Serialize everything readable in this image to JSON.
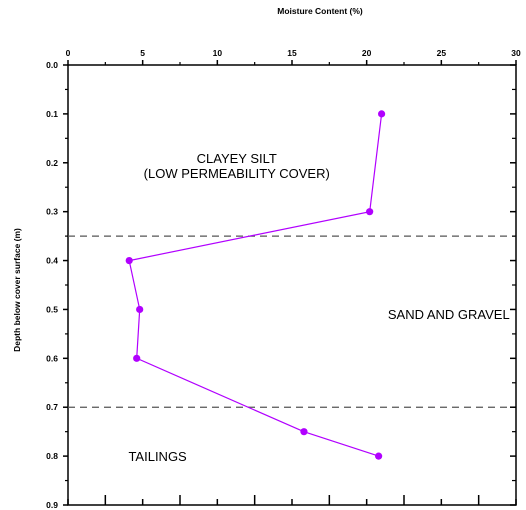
{
  "chart_data": {
    "type": "line",
    "title": "",
    "xlabel": "Moisture Content (%)",
    "ylabel": "Depth below cover surface (m)",
    "xlim": [
      0,
      30
    ],
    "ylim": [
      0.9,
      0.0
    ],
    "x_ticks": [
      "0",
      "5",
      "10",
      "15",
      "20",
      "25",
      "30"
    ],
    "y_ticks": [
      "0.0",
      "0.1",
      "0.2",
      "0.3",
      "0.4",
      "0.5",
      "0.6",
      "0.7",
      "0.8",
      "0.9"
    ],
    "x_axis_position": "top",
    "y_axis_inverted": true,
    "grid": false,
    "series": [
      {
        "color": "#b100ff",
        "points": [
          {
            "x": 21.0,
            "y": 0.1
          },
          {
            "x": 20.2,
            "y": 0.3
          },
          {
            "x": 4.1,
            "y": 0.4
          },
          {
            "x": 4.8,
            "y": 0.5
          },
          {
            "x": 4.6,
            "y": 0.6
          },
          {
            "x": 15.8,
            "y": 0.75
          },
          {
            "x": 20.8,
            "y": 0.8
          }
        ]
      }
    ],
    "reference_lines": [
      {
        "y": 0.35,
        "style": "dashed",
        "color": "#555555"
      },
      {
        "y": 0.7,
        "style": "dashed",
        "color": "#555555"
      }
    ],
    "annotations": [
      {
        "lines": [
          "CLAYEY SILT",
          "(LOW PERMEABILITY COVER)"
        ],
        "x": 11.3,
        "y": 0.2
      },
      {
        "lines": [
          "SAND AND GRAVEL"
        ],
        "x": 25.5,
        "y": 0.52
      },
      {
        "lines": [
          "TAILINGS"
        ],
        "x": 6.0,
        "y": 0.81
      }
    ]
  }
}
